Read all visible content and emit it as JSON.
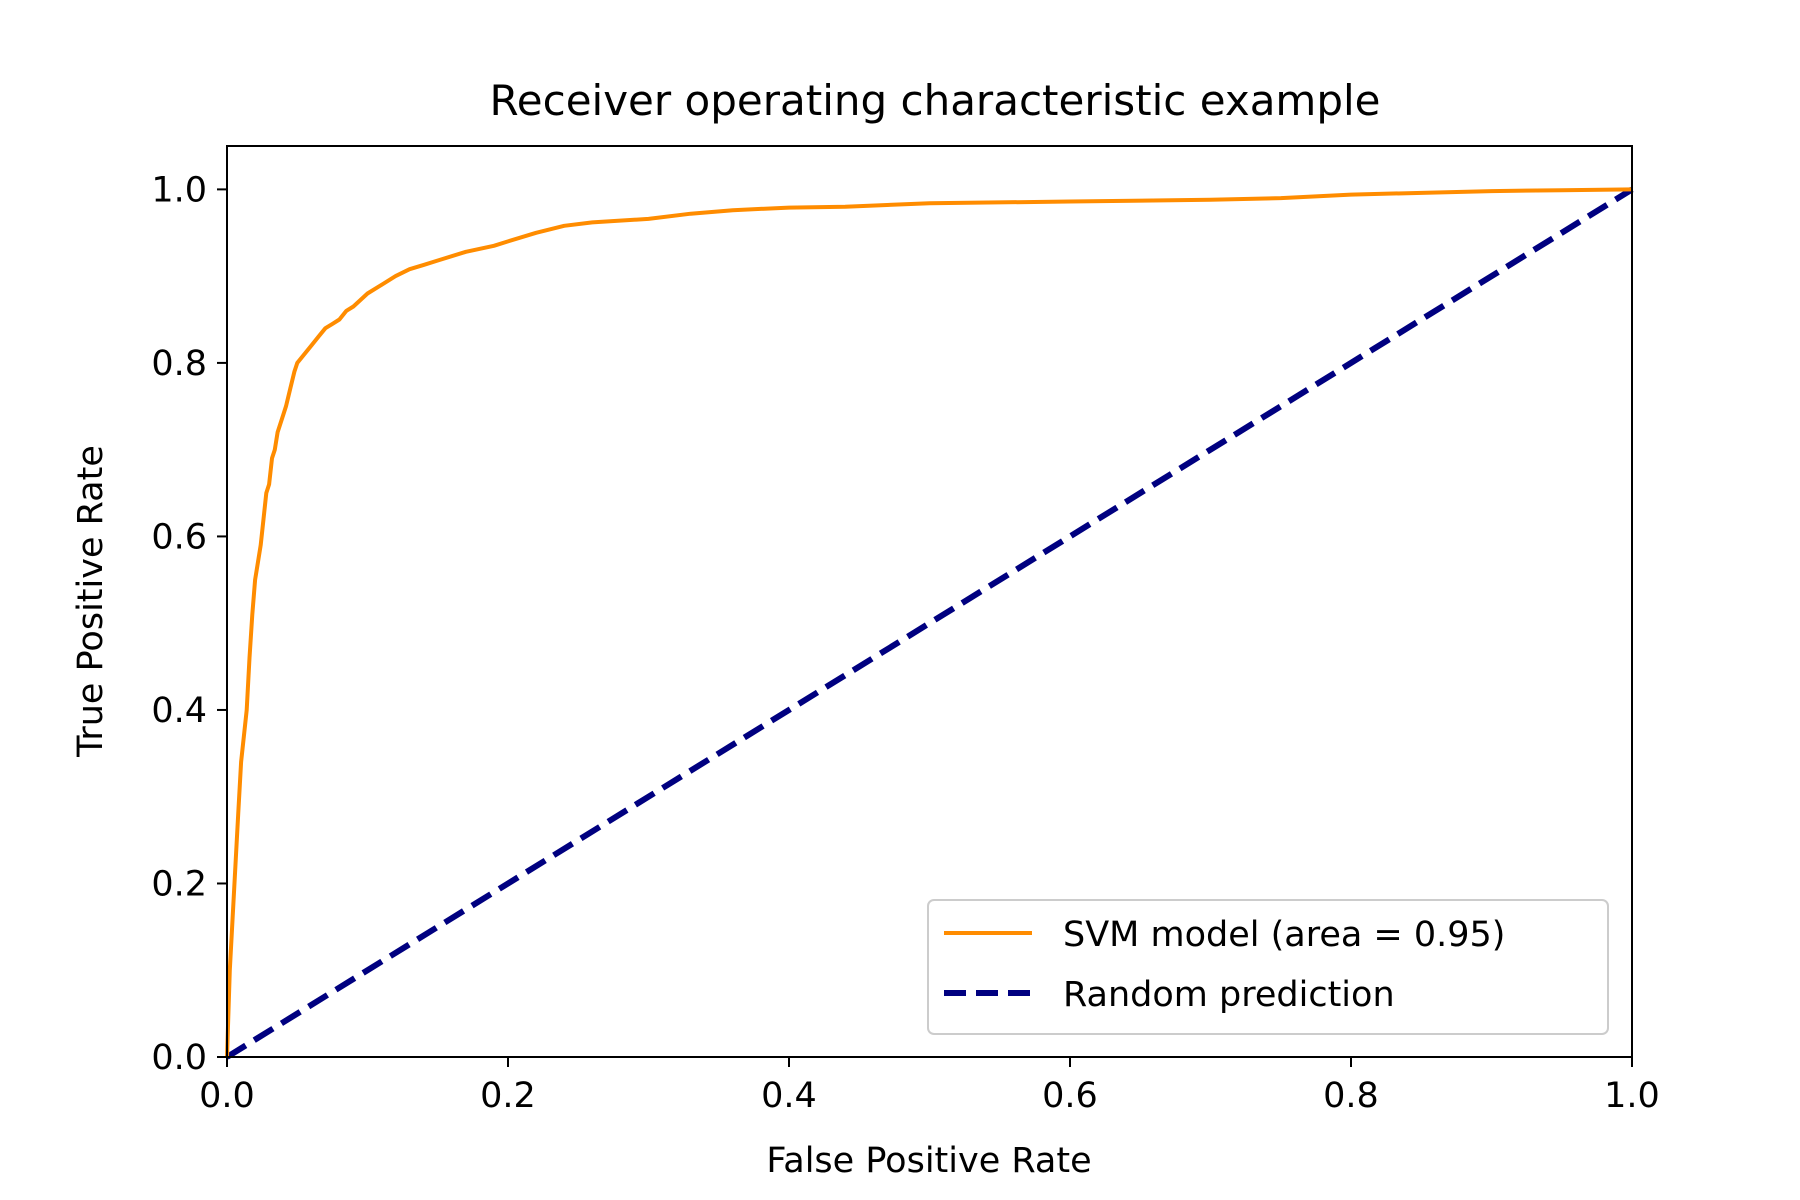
{
  "chart_data": {
    "type": "line",
    "title": "Receiver operating characteristic example",
    "xlabel": "False Positive Rate",
    "ylabel": "True Positive Rate",
    "xlim": [
      0.0,
      1.0
    ],
    "ylim": [
      0.0,
      1.05
    ],
    "xticks": [
      "0.0",
      "0.2",
      "0.4",
      "0.6",
      "0.8",
      "1.0"
    ],
    "yticks": [
      "0.0",
      "0.2",
      "0.4",
      "0.6",
      "0.8",
      "1.0"
    ],
    "grid": false,
    "legend_position": "lower-right",
    "series": [
      {
        "name": "SVM model (area = 0.95)",
        "color": "#ff8c00",
        "style": "solid",
        "x": [
          0.0,
          0.002,
          0.004,
          0.006,
          0.008,
          0.01,
          0.012,
          0.014,
          0.016,
          0.018,
          0.02,
          0.022,
          0.024,
          0.026,
          0.028,
          0.03,
          0.032,
          0.034,
          0.036,
          0.04,
          0.042,
          0.045,
          0.048,
          0.05,
          0.055,
          0.06,
          0.065,
          0.07,
          0.075,
          0.08,
          0.085,
          0.09,
          0.1,
          0.11,
          0.12,
          0.13,
          0.14,
          0.15,
          0.17,
          0.19,
          0.2,
          0.22,
          0.24,
          0.26,
          0.3,
          0.33,
          0.36,
          0.4,
          0.44,
          0.5,
          0.6,
          0.7,
          0.75,
          0.8,
          0.9,
          0.95,
          1.0
        ],
        "y": [
          0.0,
          0.1,
          0.16,
          0.22,
          0.28,
          0.34,
          0.37,
          0.4,
          0.46,
          0.51,
          0.55,
          0.57,
          0.59,
          0.62,
          0.65,
          0.66,
          0.69,
          0.7,
          0.72,
          0.74,
          0.75,
          0.77,
          0.79,
          0.8,
          0.81,
          0.82,
          0.83,
          0.84,
          0.845,
          0.85,
          0.86,
          0.865,
          0.88,
          0.89,
          0.9,
          0.908,
          0.913,
          0.918,
          0.928,
          0.935,
          0.94,
          0.95,
          0.958,
          0.962,
          0.966,
          0.972,
          0.976,
          0.979,
          0.98,
          0.984,
          0.986,
          0.988,
          0.99,
          0.994,
          0.998,
          0.999,
          1.0
        ]
      },
      {
        "name": "Random prediction",
        "color": "#000080",
        "style": "dashed",
        "x": [
          0.0,
          1.0
        ],
        "y": [
          0.0,
          1.0
        ]
      }
    ]
  }
}
